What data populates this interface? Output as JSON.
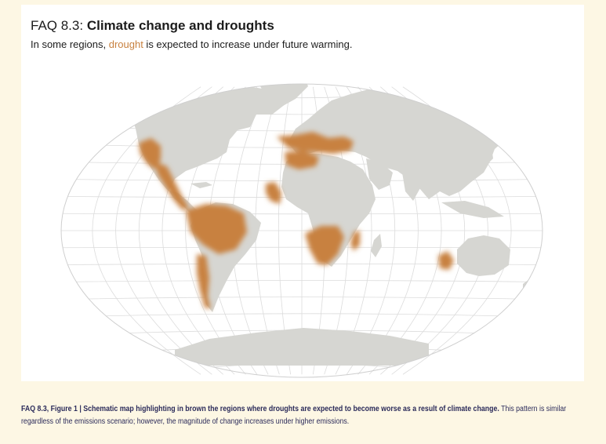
{
  "figure": {
    "title_prefix": "FAQ 8.3: ",
    "title_main": "Climate change and droughts",
    "subtitle": {
      "before": "In some regions, ",
      "highlight": "drought",
      "after": " is expected to increase under future warming."
    }
  },
  "caption": {
    "bold": "FAQ 8.3, Figure 1 | Schematic map highlighting in brown the regions where droughts are expected to become worse as a result of climate change.",
    "regular": " This pattern is similar regardless of the emissions scenario; however, the magnitude of change increases under higher emissions."
  },
  "map": {
    "projection": "Winkel tripel (schematic)",
    "colors": {
      "land": "#d6d6d2",
      "drought": "#c8813f",
      "graticule": "#dcdcdc",
      "highlight_text": "#c8813f",
      "caption_text": "#2b2b5a",
      "background": "#fdf7e4"
    },
    "drought_regions": [
      "Western North America",
      "Central America and Mexico",
      "Northern South America / Amazon",
      "Southwestern South America (Chile)",
      "Mediterranean",
      "Northern Africa",
      "West Africa",
      "Southern Africa",
      "Madagascar",
      "Southwestern Australia"
    ]
  }
}
